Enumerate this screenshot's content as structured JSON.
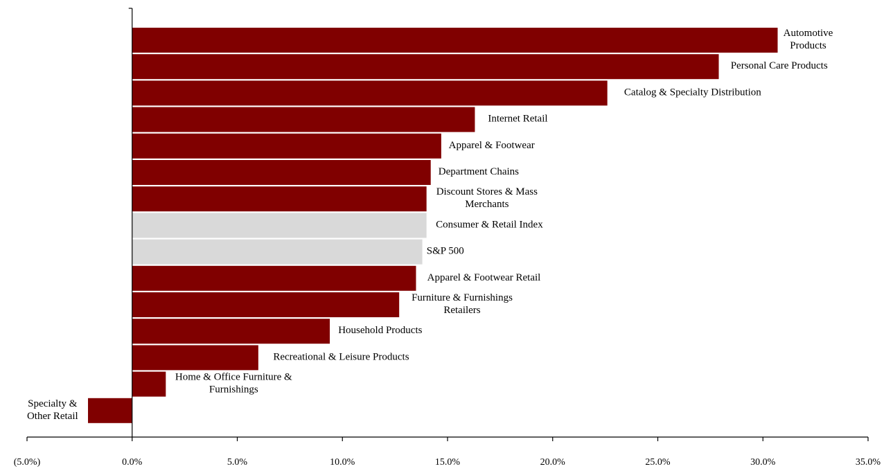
{
  "chart_data": {
    "type": "bar",
    "orientation": "horizontal",
    "categories": [
      "Automotive Products",
      "Personal Care Products",
      "Catalog & Specialty Distribution",
      "Internet Retail",
      "Apparel & Footwear",
      "Department Chains",
      "Discount Stores & Mass Merchants",
      "Consumer & Retail Index",
      "S&P 500",
      "Apparel & Footwear Retail",
      "Furniture & Furnishings Retailers",
      "Household Products",
      "Recreational & Leisure Products",
      "Home & Office Furniture & Furnishings",
      "Specialty & Other Retail"
    ],
    "label_lines": [
      [
        "Automotive",
        "Products"
      ],
      [
        "Personal Care Products"
      ],
      [
        "Catalog & Specialty Distribution"
      ],
      [
        "Internet Retail"
      ],
      [
        "Apparel & Footwear"
      ],
      [
        "Department Chains"
      ],
      [
        "Discount Stores & Mass",
        "Merchants"
      ],
      [
        "Consumer & Retail Index"
      ],
      [
        "S&P 500"
      ],
      [
        "Apparel & Footwear Retail"
      ],
      [
        "Furniture & Furnishings",
        "Retailers"
      ],
      [
        "Household Products"
      ],
      [
        "Recreational & Leisure Products"
      ],
      [
        "Home & Office Furniture &",
        "Furnishings"
      ],
      [
        "Specialty &",
        "Other Retail"
      ]
    ],
    "values": [
      30.7,
      27.9,
      22.6,
      16.3,
      14.7,
      14.2,
      14.0,
      14.0,
      13.8,
      13.5,
      12.7,
      9.4,
      6.0,
      1.6,
      -2.1
    ],
    "highlight": [
      false,
      false,
      false,
      false,
      false,
      false,
      false,
      true,
      true,
      false,
      false,
      false,
      false,
      false,
      false
    ],
    "colors": {
      "bar": "#800000",
      "highlight": "#d9d9d9"
    },
    "xlim": [
      -5,
      35
    ],
    "x_ticks": [
      -5,
      0,
      5,
      10,
      15,
      20,
      25,
      30,
      35
    ],
    "x_tick_labels": [
      "(5.0%)",
      "0.0%",
      "5.0%",
      "10.0%",
      "15.0%",
      "20.0%",
      "25.0%",
      "30.0%",
      "35.0%"
    ],
    "title": "",
    "xlabel": "",
    "ylabel": "",
    "grid": false,
    "legend": "none"
  }
}
